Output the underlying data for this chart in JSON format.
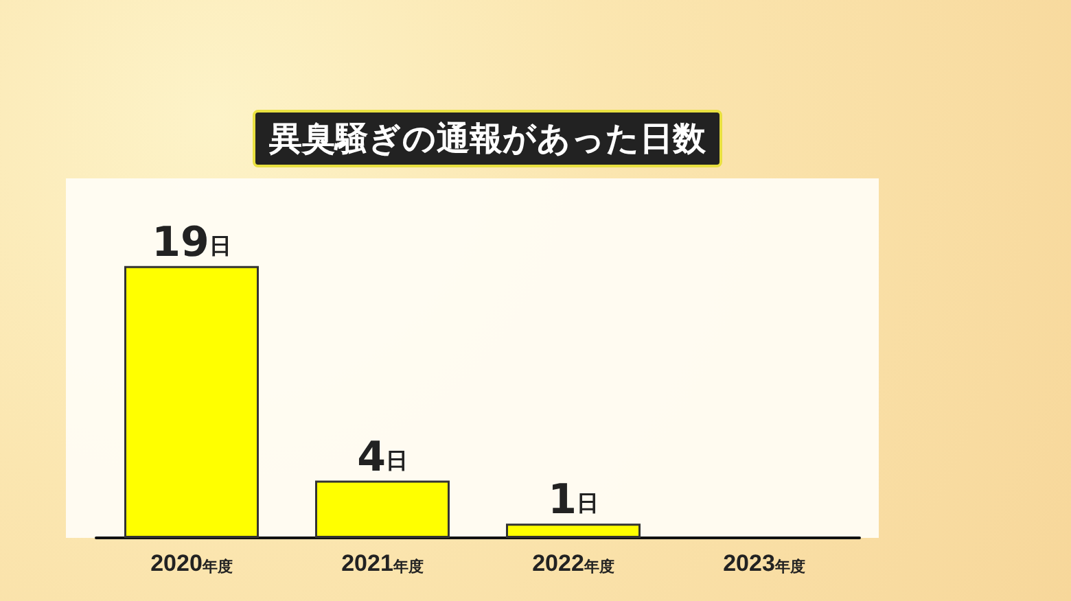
{
  "chart_data": {
    "type": "bar",
    "title": "異臭騒ぎの通報があった日数",
    "categories": [
      "2020年度",
      "2021年度",
      "2022年度",
      "2023年度"
    ],
    "values": [
      19,
      4,
      1,
      null
    ],
    "color": "#ffff00",
    "value_labels": [
      "19日",
      "4日",
      "1日",
      null
    ]
  }
}
